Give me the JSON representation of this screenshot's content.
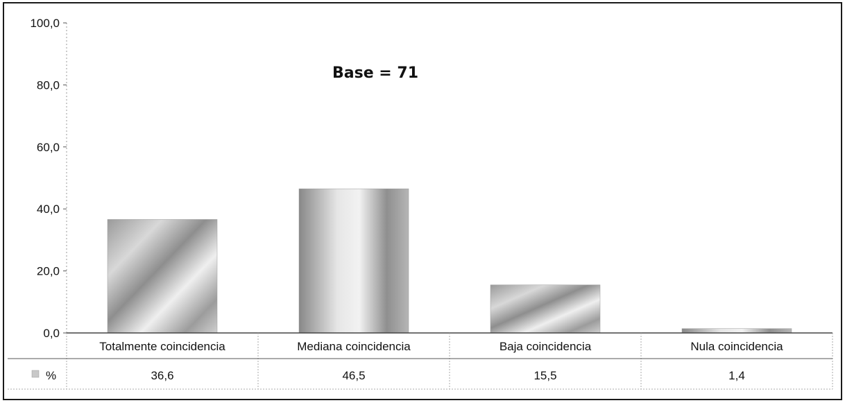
{
  "chart_data": {
    "type": "bar",
    "title": "Base = 71",
    "categories": [
      "Totalmente coincidencia",
      "Mediana coincidencia",
      "Baja coincidencia",
      "Nula coincidencia"
    ],
    "series": [
      {
        "name": "%",
        "values": [
          36.6,
          46.5,
          15.5,
          1.4
        ]
      }
    ],
    "value_labels": [
      "36,6",
      "46,5",
      "15,5",
      "1,4"
    ],
    "ylim": [
      0,
      100
    ],
    "yticks": [
      "0,0",
      "20,0",
      "40,0",
      "60,0",
      "80,0",
      "100,0"
    ],
    "xlabel": "",
    "ylabel": "",
    "grid": false,
    "data_table": true,
    "colors": {
      "bar": "#bdbdbd",
      "bar_dark": "#8a8a8a",
      "bar_light": "#ececec",
      "axis": "#555555"
    }
  }
}
